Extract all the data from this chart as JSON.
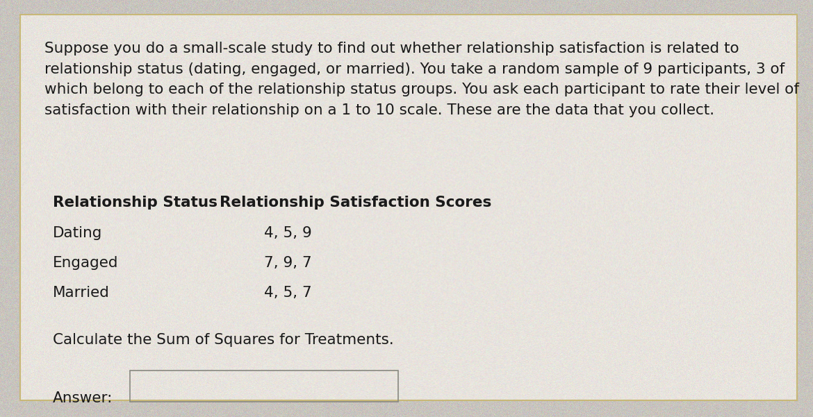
{
  "background_color": "#c8c4be",
  "card_color": "#e8e4de",
  "card_border_color": "#c8b878",
  "paragraph_text": "Suppose you do a small-scale study to find out whether relationship satisfaction is related to\nrelationship status (dating, engaged, or married). You take a random sample of 9 participants, 3 of\nwhich belong to each of the relationship status groups. You ask each participant to rate their level of\nsatisfaction with their relationship on a 1 to 10 scale. These are the data that you collect.",
  "header_col1": "Relationship Status",
  "header_col2": "Relationship Satisfaction Scores",
  "table_rows": [
    [
      "Dating",
      "4, 5, 9"
    ],
    [
      "Engaged",
      "7, 9, 7"
    ],
    [
      "Married",
      "4, 5, 7"
    ]
  ],
  "question_text": "Calculate the Sum of Squares for Treatments.",
  "answer_label": "Answer:",
  "font_size_paragraph": 15.5,
  "font_size_header": 15.5,
  "font_size_table": 15.5,
  "font_size_question": 15.5,
  "font_size_answer": 15.5
}
